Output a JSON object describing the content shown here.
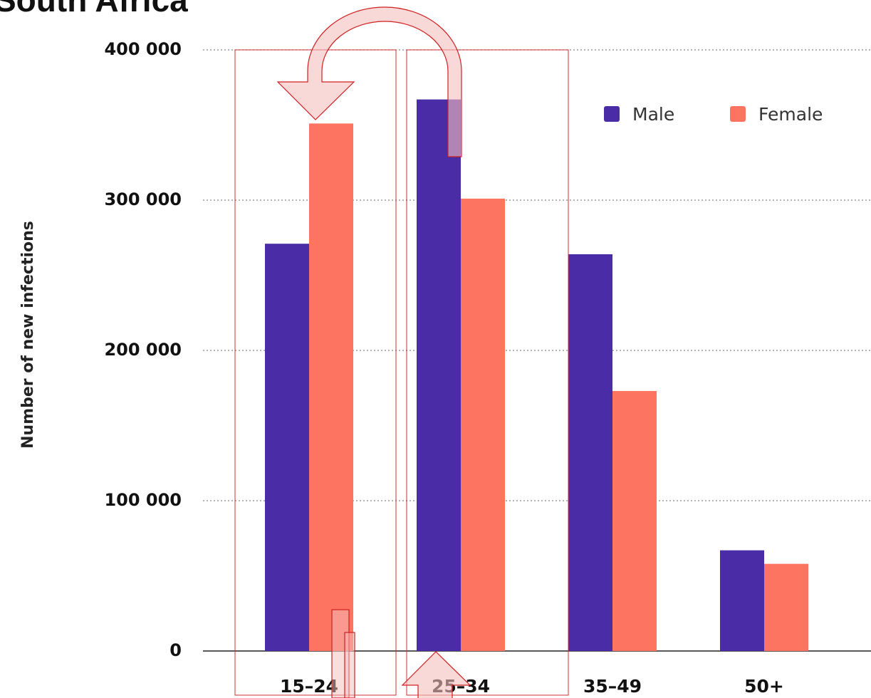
{
  "chart_data": {
    "type": "bar",
    "title": "South Africa",
    "y_label": "Number of new infections",
    "categories": [
      "15–24",
      "25–34",
      "35–49",
      "50+"
    ],
    "series": [
      {
        "name": "Male",
        "color": "#4a2da6",
        "values": [
          271000,
          367000,
          264000,
          67000
        ]
      },
      {
        "name": "Female",
        "color": "#fd7560",
        "values": [
          351000,
          301000,
          173000,
          58000
        ]
      }
    ],
    "ylim": [
      0,
      400000
    ],
    "yticks": [
      0,
      {
        "value": 100000,
        "label": "100 000"
      },
      {
        "value": 200000,
        "label": "200 000"
      },
      {
        "value": 300000,
        "label": "300 000"
      },
      {
        "value": 400000,
        "label": "400 000"
      }
    ],
    "grid": true,
    "legend": "top-right"
  }
}
